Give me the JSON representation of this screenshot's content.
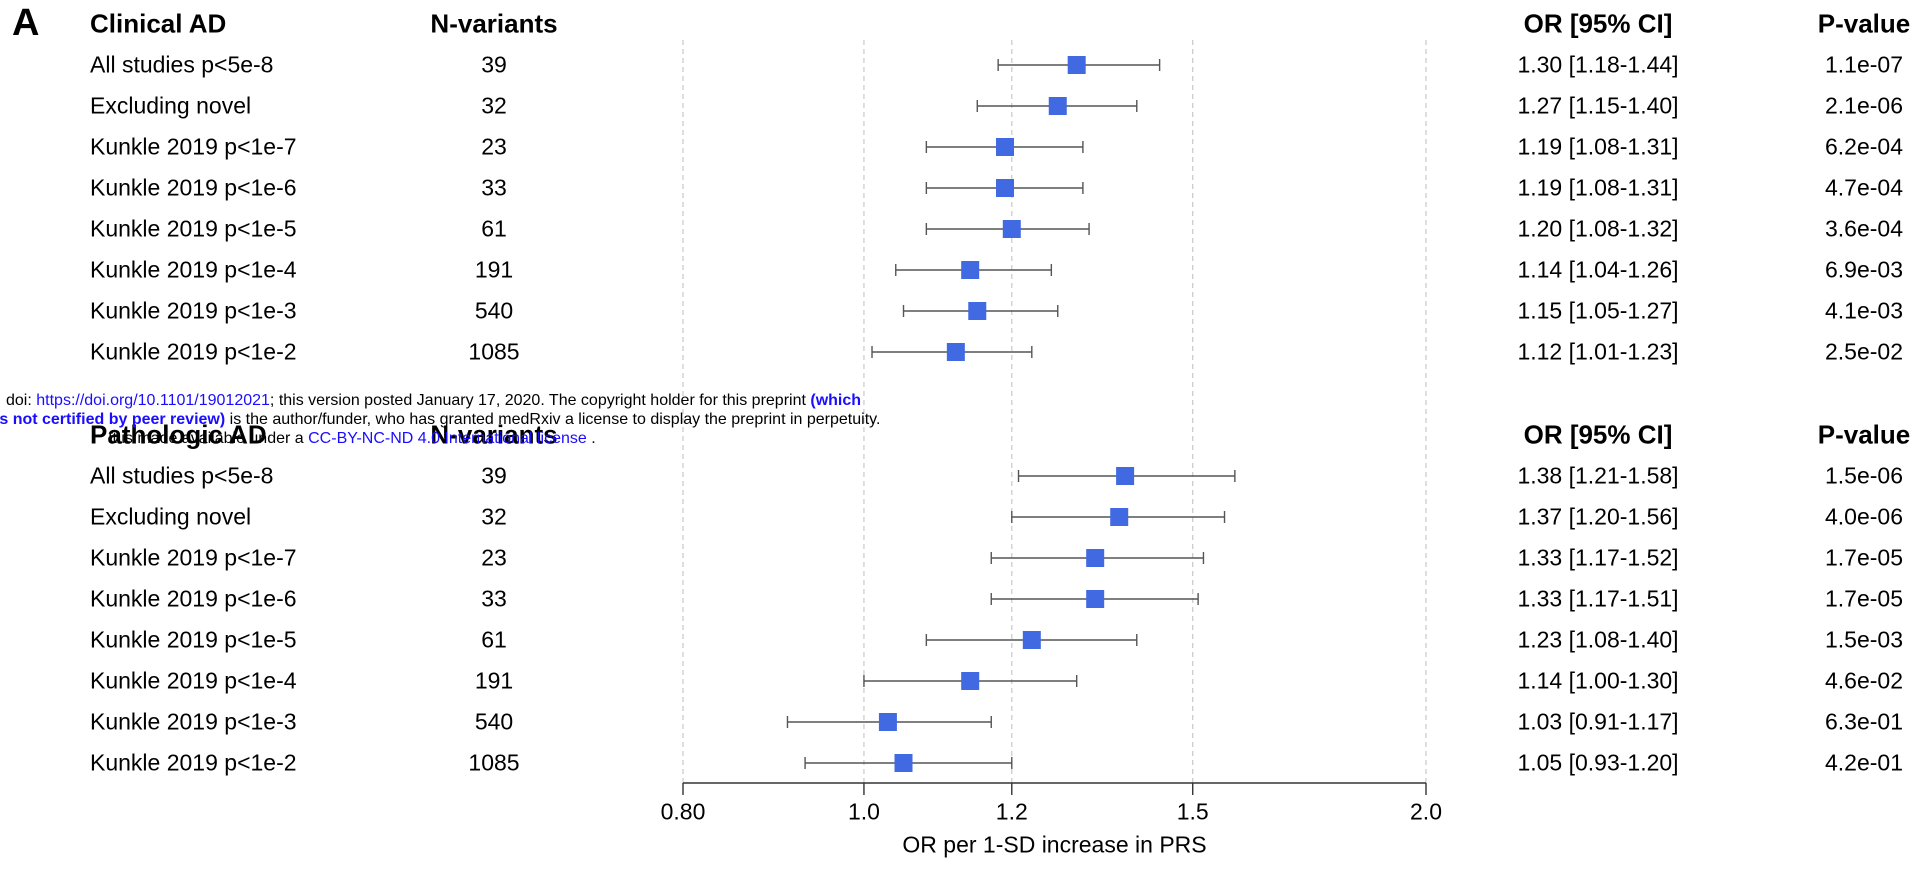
{
  "panel_label": "A",
  "sections": [
    {
      "title": "Clinical AD",
      "nvar_header": "N-variants",
      "or_header": "OR [95% CI]",
      "p_header": "P-value",
      "rows": [
        {
          "label": "All studies p<5e-8",
          "n": "39",
          "or_text": "1.30 [1.18-1.44]",
          "p": "1.1e-07",
          "or": 1.3,
          "lo": 1.18,
          "hi": 1.44
        },
        {
          "label": "Excluding novel",
          "n": "32",
          "or_text": "1.27 [1.15-1.40]",
          "p": "2.1e-06",
          "or": 1.27,
          "lo": 1.15,
          "hi": 1.4
        },
        {
          "label": "Kunkle 2019 p<1e-7",
          "n": "23",
          "or_text": "1.19 [1.08-1.31]",
          "p": "6.2e-04",
          "or": 1.19,
          "lo": 1.08,
          "hi": 1.31
        },
        {
          "label": "Kunkle 2019 p<1e-6",
          "n": "33",
          "or_text": "1.19 [1.08-1.31]",
          "p": "4.7e-04",
          "or": 1.19,
          "lo": 1.08,
          "hi": 1.31
        },
        {
          "label": "Kunkle 2019 p<1e-5",
          "n": "61",
          "or_text": "1.20 [1.08-1.32]",
          "p": "3.6e-04",
          "or": 1.2,
          "lo": 1.08,
          "hi": 1.32
        },
        {
          "label": "Kunkle 2019 p<1e-4",
          "n": "191",
          "or_text": "1.14 [1.04-1.26]",
          "p": "6.9e-03",
          "or": 1.14,
          "lo": 1.04,
          "hi": 1.26
        },
        {
          "label": "Kunkle 2019 p<1e-3",
          "n": "540",
          "or_text": "1.15 [1.05-1.27]",
          "p": "4.1e-03",
          "or": 1.15,
          "lo": 1.05,
          "hi": 1.27
        },
        {
          "label": "Kunkle 2019 p<1e-2",
          "n": "1085",
          "or_text": "1.12 [1.01-1.23]",
          "p": "2.5e-02",
          "or": 1.12,
          "lo": 1.01,
          "hi": 1.23
        }
      ]
    },
    {
      "title": "Pathologic AD",
      "nvar_header": "N-variants",
      "or_header": "OR [95% CI]",
      "p_header": "P-value",
      "rows": [
        {
          "label": "All studies p<5e-8",
          "n": "39",
          "or_text": "1.38 [1.21-1.58]",
          "p": "1.5e-06",
          "or": 1.38,
          "lo": 1.21,
          "hi": 1.58
        },
        {
          "label": "Excluding novel",
          "n": "32",
          "or_text": "1.37 [1.20-1.56]",
          "p": "4.0e-06",
          "or": 1.37,
          "lo": 1.2,
          "hi": 1.56
        },
        {
          "label": "Kunkle 2019 p<1e-7",
          "n": "23",
          "or_text": "1.33 [1.17-1.52]",
          "p": "1.7e-05",
          "or": 1.33,
          "lo": 1.17,
          "hi": 1.52
        },
        {
          "label": "Kunkle 2019 p<1e-6",
          "n": "33",
          "or_text": "1.33 [1.17-1.51]",
          "p": "1.7e-05",
          "or": 1.33,
          "lo": 1.17,
          "hi": 1.51
        },
        {
          "label": "Kunkle 2019 p<1e-5",
          "n": "61",
          "or_text": "1.23 [1.08-1.40]",
          "p": "1.5e-03",
          "or": 1.23,
          "lo": 1.08,
          "hi": 1.4
        },
        {
          "label": "Kunkle 2019 p<1e-4",
          "n": "191",
          "or_text": "1.14 [1.00-1.30]",
          "p": "4.6e-02",
          "or": 1.14,
          "lo": 1.0,
          "hi": 1.3
        },
        {
          "label": "Kunkle 2019 p<1e-3",
          "n": "540",
          "or_text": "1.03 [0.91-1.17]",
          "p": "6.3e-01",
          "or": 1.03,
          "lo": 0.91,
          "hi": 1.17
        },
        {
          "label": "Kunkle 2019 p<1e-2",
          "n": "1085",
          "or_text": "1.05 [0.93-1.20]",
          "p": "4.2e-01",
          "or": 1.05,
          "lo": 0.93,
          "hi": 1.2
        }
      ]
    }
  ],
  "chart_data": {
    "type": "scatter",
    "xlabel": "OR per 1-SD increase in PRS",
    "x_scale": "log",
    "xlim": [
      0.8,
      2.0
    ],
    "x_ticks": [
      {
        "value": 0.8,
        "label": "0.80"
      },
      {
        "value": 1.0,
        "label": "1.0"
      },
      {
        "value": 1.2,
        "label": "1.2"
      },
      {
        "value": 1.5,
        "label": "1.5"
      },
      {
        "value": 2.0,
        "label": "2.0"
      }
    ],
    "grid": true,
    "marker_color": "#4169e1"
  },
  "watermark": {
    "line1_prefix": "doi: ",
    "line1_link": "https://doi.org/10.1101/19012021",
    "line1_rest": "; this version posted January 17, 2020. The copyright holder for this preprint ",
    "line1_bold": "(which",
    "line2_bold": "was not certified by peer review)",
    "line2_rest": " is the author/funder, who has granted medRxiv a license to display the preprint in perpetuity.",
    "line3_prefix": "It is made available under a ",
    "line3_link": "CC-BY-NC-ND 4.0 International license",
    "line3_suffix": " ."
  }
}
